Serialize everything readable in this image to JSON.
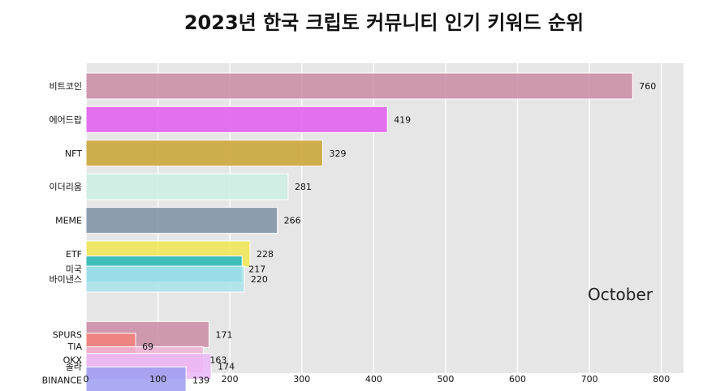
{
  "chart_data": {
    "type": "bar",
    "orientation": "horizontal",
    "title": "2023년 한국 크립토 커뮤니티 인기 키워드 순위",
    "period_label": "October",
    "xlim": [
      0,
      820
    ],
    "xticks": [
      "0",
      "100",
      "200",
      "300",
      "400",
      "500",
      "600",
      "700",
      "800"
    ],
    "grid": true,
    "categories": [
      "비트코인",
      "에어드랍",
      "NFT",
      "이더리움",
      "MEME",
      "ETF",
      "미국",
      "바이낸스",
      "SPURS",
      "TIA",
      "OKX",
      "솔라",
      "BINANCE"
    ],
    "values": [
      760,
      419,
      329,
      281,
      266,
      228,
      217,
      220,
      171,
      69,
      163,
      174,
      139
    ],
    "value_labels": [
      "760",
      "419",
      "329",
      "281",
      "266",
      "228",
      "217",
      "220",
      "171",
      "69",
      "163",
      "174",
      "139"
    ],
    "ranks": [
      1,
      2,
      3,
      4,
      5,
      6.0,
      6.45,
      6.75,
      8.4,
      8.75,
      9.15,
      9.35,
      9.75
    ],
    "colors": [
      "#c98aa4",
      "#e05af0",
      "#c9a230",
      "#cdeee3",
      "#7b8fa3",
      "#f0e650",
      "#1db6c7",
      "#a9e3ea",
      "#c98aa4",
      "#f47f79",
      "#f0b2d2",
      "#ebb7f7",
      "#9b9cf0"
    ]
  }
}
